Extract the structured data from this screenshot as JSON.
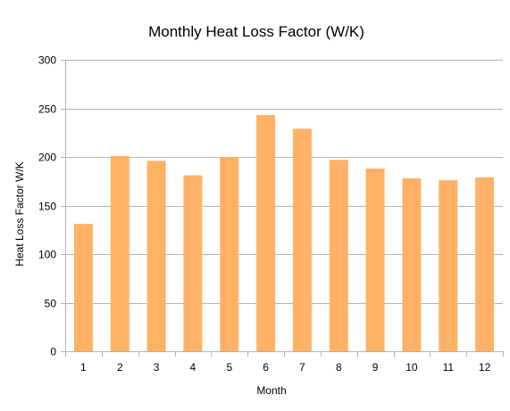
{
  "chart_data": {
    "type": "bar",
    "title": "Monthly Heat Loss Factor (W/K)",
    "xlabel": "Month",
    "ylabel": "Heat Loss Factor W/K",
    "categories": [
      "1",
      "2",
      "3",
      "4",
      "5",
      "6",
      "7",
      "8",
      "9",
      "10",
      "11",
      "12"
    ],
    "values": [
      131,
      201,
      196,
      181,
      200,
      243,
      229,
      197,
      188,
      178,
      176,
      179
    ],
    "ylim": [
      0,
      300
    ],
    "yticks": [
      0,
      50,
      100,
      150,
      200,
      250,
      300
    ],
    "grid": true,
    "legend": "none",
    "bar_color": "#ffb266",
    "grid_color": "#b3b3b3"
  }
}
